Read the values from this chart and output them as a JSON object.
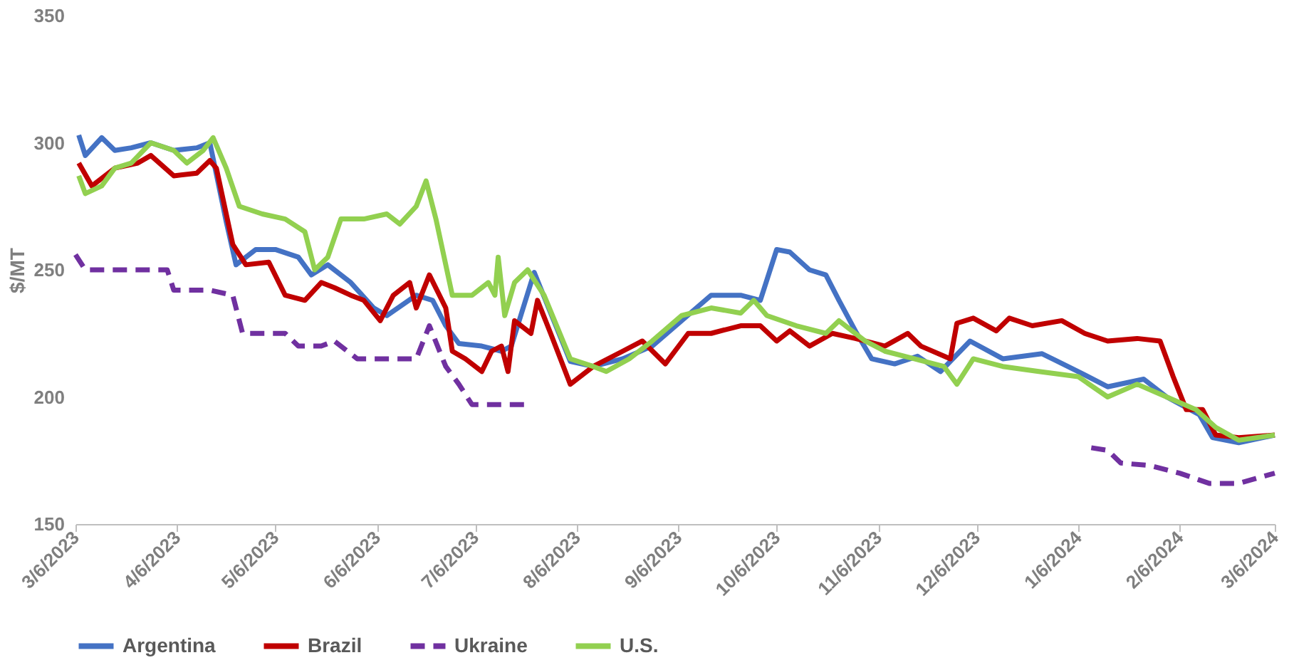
{
  "chart_data": {
    "type": "line",
    "ylabel": "$/MT",
    "xlim": [
      "2023-03-06",
      "2024-03-06"
    ],
    "xticks": [
      {
        "value": "2023-03-06",
        "label": "3/6/2023"
      },
      {
        "value": "2023-04-06",
        "label": "4/6/2023"
      },
      {
        "value": "2023-05-06",
        "label": "5/6/2023"
      },
      {
        "value": "2023-06-06",
        "label": "6/6/2023"
      },
      {
        "value": "2023-07-06",
        "label": "7/6/2023"
      },
      {
        "value": "2023-08-06",
        "label": "8/6/2023"
      },
      {
        "value": "2023-09-06",
        "label": "9/6/2023"
      },
      {
        "value": "2023-10-06",
        "label": "10/6/2023"
      },
      {
        "value": "2023-11-06",
        "label": "11/6/2023"
      },
      {
        "value": "2023-12-06",
        "label": "12/6/2023"
      },
      {
        "value": "2024-01-06",
        "label": "1/6/2024"
      },
      {
        "value": "2024-02-06",
        "label": "2/6/2024"
      },
      {
        "value": "2024-03-06",
        "label": "3/6/2024"
      }
    ],
    "ylim": [
      150,
      350
    ],
    "yticks": [
      150,
      200,
      250,
      300,
      350
    ],
    "grid": false,
    "legend": "bottom",
    "series": [
      {
        "name": "Argentina",
        "color": "#4472c4",
        "line_style": "solid",
        "x": [
          "2023-03-07",
          "2023-03-09",
          "2023-03-14",
          "2023-03-18",
          "2023-03-23",
          "2023-03-29",
          "2023-04-05",
          "2023-04-12",
          "2023-04-16",
          "2023-04-21",
          "2023-04-24",
          "2023-04-30",
          "2023-05-06",
          "2023-05-13",
          "2023-05-17",
          "2023-05-22",
          "2023-05-29",
          "2023-06-05",
          "2023-06-09",
          "2023-06-18",
          "2023-06-23",
          "2023-06-27",
          "2023-07-01",
          "2023-07-08",
          "2023-07-14",
          "2023-07-17",
          "2023-07-24",
          "2023-08-04",
          "2023-08-11",
          "2023-08-20",
          "2023-08-29",
          "2023-09-07",
          "2023-09-16",
          "2023-09-25",
          "2023-10-01",
          "2023-10-06",
          "2023-10-10",
          "2023-10-16",
          "2023-10-21",
          "2023-10-25",
          "2023-10-30",
          "2023-11-04",
          "2023-11-11",
          "2023-11-18",
          "2023-11-25",
          "2023-12-04",
          "2023-12-14",
          "2023-12-26",
          "2024-01-06",
          "2024-01-15",
          "2024-01-26",
          "2024-02-02",
          "2024-02-12",
          "2024-02-16",
          "2024-02-24",
          "2024-03-06"
        ],
        "values": [
          303,
          295,
          302,
          297,
          298,
          300,
          297,
          298,
          300,
          269,
          252,
          258,
          258,
          255,
          248,
          252,
          245,
          235,
          232,
          240,
          238,
          228,
          221,
          220,
          218,
          220,
          249,
          214,
          212,
          215,
          220,
          230,
          240,
          240,
          238,
          258,
          257,
          250,
          248,
          238,
          226,
          215,
          213,
          216,
          210,
          222,
          215,
          217,
          210,
          204,
          207,
          200,
          193,
          184,
          182,
          185
        ]
      },
      {
        "name": "Brazil",
        "color": "#c00000",
        "line_style": "solid",
        "x": [
          "2023-03-07",
          "2023-03-11",
          "2023-03-18",
          "2023-03-25",
          "2023-03-29",
          "2023-04-05",
          "2023-04-12",
          "2023-04-16",
          "2023-04-18",
          "2023-04-23",
          "2023-04-27",
          "2023-05-04",
          "2023-05-09",
          "2023-05-15",
          "2023-05-20",
          "2023-05-24",
          "2023-05-29",
          "2023-06-02",
          "2023-06-07",
          "2023-06-11",
          "2023-06-16",
          "2023-06-18",
          "2023-06-22",
          "2023-06-27",
          "2023-06-29",
          "2023-07-03",
          "2023-07-08",
          "2023-07-11",
          "2023-07-14",
          "2023-07-16",
          "2023-07-18",
          "2023-07-23",
          "2023-07-25",
          "2023-07-29",
          "2023-08-04",
          "2023-08-11",
          "2023-08-20",
          "2023-08-26",
          "2023-09-02",
          "2023-09-09",
          "2023-09-16",
          "2023-09-25",
          "2023-10-01",
          "2023-10-06",
          "2023-10-10",
          "2023-10-16",
          "2023-10-23",
          "2023-10-30",
          "2023-11-08",
          "2023-11-15",
          "2023-11-19",
          "2023-11-28",
          "2023-11-30",
          "2023-12-05",
          "2023-12-12",
          "2023-12-16",
          "2023-12-23",
          "2024-01-01",
          "2024-01-08",
          "2024-01-15",
          "2024-01-24",
          "2024-01-31",
          "2024-02-04",
          "2024-02-08",
          "2024-02-13",
          "2024-02-17",
          "2024-02-24",
          "2024-03-06"
        ],
        "values": [
          292,
          283,
          290,
          292,
          295,
          287,
          288,
          293,
          290,
          260,
          252,
          253,
          240,
          238,
          245,
          243,
          240,
          238,
          230,
          240,
          245,
          235,
          248,
          235,
          218,
          215,
          210,
          218,
          220,
          210,
          230,
          225,
          238,
          225,
          205,
          212,
          218,
          222,
          213,
          225,
          225,
          228,
          228,
          222,
          226,
          220,
          225,
          223,
          220,
          225,
          220,
          215,
          229,
          231,
          226,
          231,
          228,
          230,
          225,
          222,
          223,
          222,
          208,
          195,
          195,
          185,
          184,
          185
        ]
      },
      {
        "name": "Ukraine",
        "color": "#7030a0",
        "line_style": "dashed",
        "x": [
          "2023-03-06",
          "2023-03-09",
          "2023-03-25",
          "2023-04-03",
          "2023-04-05",
          "2023-04-16",
          "2023-04-23",
          "2023-04-26",
          "2023-05-09",
          "2023-05-13",
          "2023-05-20",
          "2023-05-24",
          "2023-05-31",
          "2023-06-18",
          "2023-06-22",
          "2023-06-27",
          "2023-07-01",
          "2023-07-05",
          "2023-07-21",
          "2023-10-21",
          "2024-01-10",
          "2024-01-15",
          "2024-01-19",
          "2024-01-28",
          "2024-02-06",
          "2024-02-15",
          "2024-02-24",
          "2024-03-06"
        ],
        "values": [
          256,
          250,
          250,
          250,
          242,
          242,
          240,
          225,
          225,
          220,
          220,
          222,
          215,
          215,
          228,
          212,
          205,
          197,
          197,
          null,
          180,
          179,
          174,
          173,
          170,
          166,
          166,
          170
        ]
      },
      {
        "name": "U.S.",
        "color": "#92d050",
        "line_style": "solid",
        "x": [
          "2023-03-07",
          "2023-03-09",
          "2023-03-14",
          "2023-03-18",
          "2023-03-23",
          "2023-03-29",
          "2023-04-05",
          "2023-04-09",
          "2023-04-14",
          "2023-04-17",
          "2023-04-21",
          "2023-04-25",
          "2023-05-02",
          "2023-05-09",
          "2023-05-15",
          "2023-05-18",
          "2023-05-22",
          "2023-05-26",
          "2023-06-02",
          "2023-06-09",
          "2023-06-13",
          "2023-06-18",
          "2023-06-21",
          "2023-06-24",
          "2023-06-29",
          "2023-07-05",
          "2023-07-10",
          "2023-07-12",
          "2023-07-13",
          "2023-07-15",
          "2023-07-18",
          "2023-07-22",
          "2023-07-27",
          "2023-08-04",
          "2023-08-11",
          "2023-08-15",
          "2023-08-22",
          "2023-08-29",
          "2023-09-07",
          "2023-09-16",
          "2023-09-25",
          "2023-09-29",
          "2023-10-03",
          "2023-10-12",
          "2023-10-21",
          "2023-10-25",
          "2023-11-02",
          "2023-11-08",
          "2023-11-17",
          "2023-11-26",
          "2023-11-30",
          "2023-12-05",
          "2023-12-14",
          "2023-12-25",
          "2024-01-06",
          "2024-01-15",
          "2024-01-24",
          "2024-02-02",
          "2024-02-11",
          "2024-02-17",
          "2024-02-24",
          "2024-03-06"
        ],
        "values": [
          287,
          280,
          283,
          290,
          292,
          300,
          297,
          292,
          297,
          302,
          290,
          275,
          272,
          270,
          265,
          250,
          255,
          270,
          270,
          272,
          268,
          275,
          285,
          270,
          240,
          240,
          245,
          240,
          255,
          232,
          245,
          250,
          240,
          215,
          212,
          210,
          215,
          222,
          232,
          235,
          233,
          238,
          232,
          228,
          225,
          230,
          222,
          218,
          215,
          212,
          205,
          215,
          212,
          210,
          208,
          200,
          205,
          200,
          195,
          188,
          183,
          185
        ]
      }
    ]
  }
}
